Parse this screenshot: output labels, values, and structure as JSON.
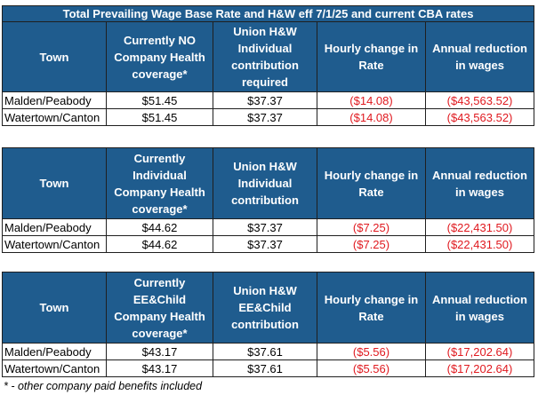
{
  "title": "Total Prevailing Wage Base Rate and H&W eff 7/1/25 and current CBA rates",
  "tables": [
    {
      "headers": [
        "Town",
        "Currently NO Company Health coverage*",
        "Union H&W Individual contribution required",
        "Hourly change in Rate",
        "Annual reduction in wages"
      ],
      "rows": [
        [
          "Malden/Peabody",
          "$51.45",
          "$37.37",
          "($14.08)",
          "($43,563.52)"
        ],
        [
          "Watertown/Canton",
          "$51.45",
          "$37.37",
          "($14.08)",
          "($43,563.52)"
        ]
      ]
    },
    {
      "headers": [
        "Town",
        "Currently Individual Company Health coverage*",
        "Union H&W Individual contribution",
        "Hourly change in Rate",
        "Annual reduction in wages"
      ],
      "rows": [
        [
          "Malden/Peabody",
          "$44.62",
          "$37.37",
          "($7.25)",
          "($22,431.50)"
        ],
        [
          "Watertown/Canton",
          "$44.62",
          "$37.37",
          "($7.25)",
          "($22,431.50)"
        ]
      ]
    },
    {
      "headers": [
        "Town",
        "Currently EE&Child Company Health coverage*",
        "Union H&W EE&Child contribution",
        "Hourly change in Rate",
        "Annual reduction in wages"
      ],
      "rows": [
        [
          "Malden/Peabody",
          "$43.17",
          "$37.61",
          "($5.56)",
          "($17,202.64)"
        ],
        [
          "Watertown/Canton",
          "$43.17",
          "$37.61",
          "($5.56)",
          "($17,202.64)"
        ]
      ]
    }
  ],
  "footnote": "* - other company paid benefits included",
  "colors": {
    "header_bg": "#1f5c8e",
    "header_text": "#ffffff",
    "negative": "#e0191f"
  }
}
